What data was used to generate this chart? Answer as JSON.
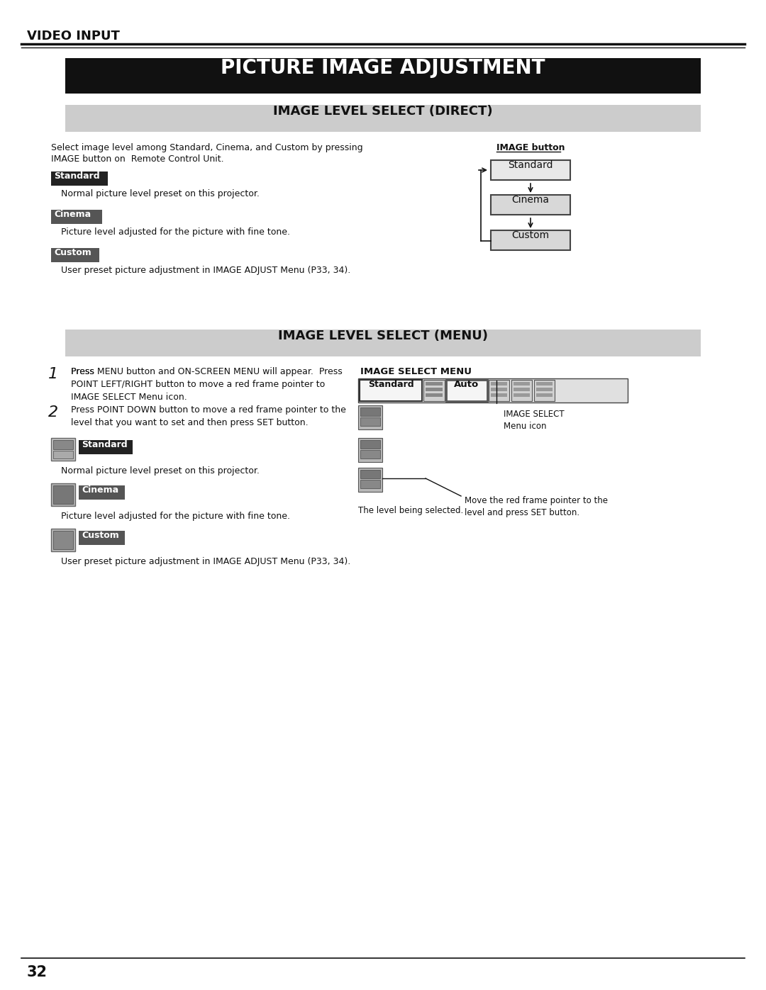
{
  "page_bg": "#ffffff",
  "page_width": 10.8,
  "page_height": 13.97,
  "header_text": "VIDEO INPUT",
  "main_title": "PICTURE IMAGE ADJUSTMENT",
  "main_title_bg": "#111111",
  "main_title_color": "#ffffff",
  "section1_title": "IMAGE LEVEL SELECT (DIRECT)",
  "section1_bg": "#cccccc",
  "section2_title": "IMAGE LEVEL SELECT (MENU)",
  "section2_bg": "#cccccc",
  "intro_text1": "Select image level among Standard, Cinema, and Custom by pressing",
  "intro_text2": "IMAGE button on  Remote Control Unit.",
  "image_button_label": "IMAGE button",
  "standard_desc": "Normal picture level preset on this projector.",
  "cinema_desc": "Picture level adjusted for the picture with fine tone.",
  "custom_desc": "User preset picture adjustment in IMAGE ADJUST Menu (P33, 34).",
  "step1_bold": "Press MENU button",
  "step1_text": " and ON-SCREEN MENU will appear.  Press\nPOINT LEFT/RIGHT button to move a red frame pointer to\nIMAGE SELECT Menu icon.",
  "step2_text": "Press POINT DOWN button to move a red frame pointer to the\nlevel that you want to set and then press SET button.",
  "image_select_menu_label": "IMAGE SELECT MENU",
  "image_select_icon_label": "IMAGE SELECT\nMenu icon",
  "move_pointer_text": "Move the red frame pointer to the\nlevel and press SET button.",
  "level_selected_text": "The level being selected.",
  "standard_desc2": "Normal picture level preset on this projector.",
  "cinema_desc2": "Picture level adjusted for the picture with fine tone.",
  "custom_desc2": "User preset picture adjustment in IMAGE ADJUST Menu (P33, 34).",
  "page_number": "32",
  "label_bg_dark": "#222222",
  "label_bg_mid": "#555555",
  "label_color": "#ffffff"
}
